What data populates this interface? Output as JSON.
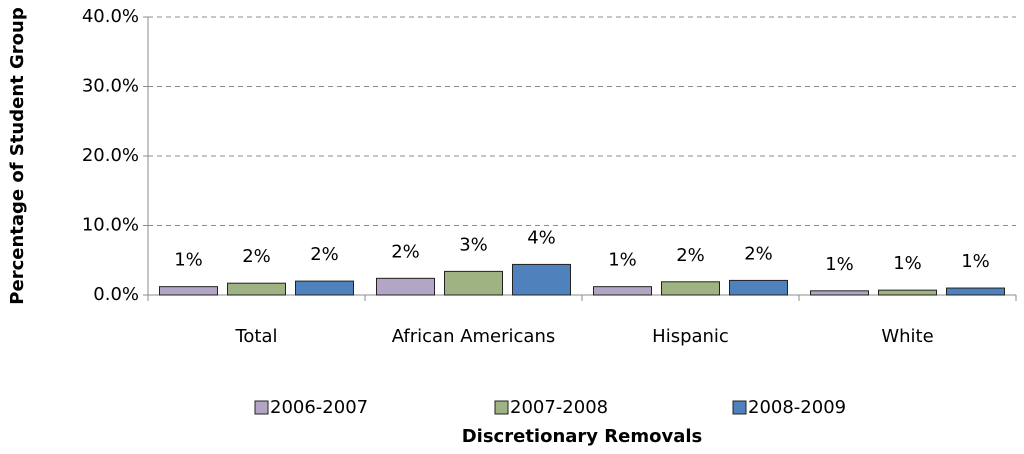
{
  "chart_data": {
    "type": "bar",
    "x_label": "Discretionary Removals",
    "y_label": "Percentage of Student Group",
    "categories": [
      "Total",
      "African Americans",
      "Hispanic",
      "White"
    ],
    "series": [
      {
        "name": "2006-2007",
        "color": "#b3a6c4",
        "values": [
          1.2,
          2.4,
          1.2,
          0.6
        ],
        "value_labels": [
          "1%",
          "2%",
          "1%",
          "1%"
        ]
      },
      {
        "name": "2007-2008",
        "color": "#9fb382",
        "values": [
          1.7,
          3.4,
          1.9,
          0.7
        ],
        "value_labels": [
          "2%",
          "3%",
          "2%",
          "1%"
        ]
      },
      {
        "name": "2008-2009",
        "color": "#4f81bd",
        "values": [
          2.0,
          4.4,
          2.1,
          1.0
        ],
        "value_labels": [
          "2%",
          "4%",
          "2%",
          "1%"
        ]
      }
    ],
    "ylim": [
      0,
      40
    ],
    "yticks": [
      {
        "value": 0,
        "label": "0.0%"
      },
      {
        "value": 10,
        "label": "10.0%"
      },
      {
        "value": 20,
        "label": "20.0%"
      },
      {
        "value": 30,
        "label": "30.0%"
      },
      {
        "value": 40,
        "label": "40.0%"
      }
    ],
    "grid": true
  }
}
